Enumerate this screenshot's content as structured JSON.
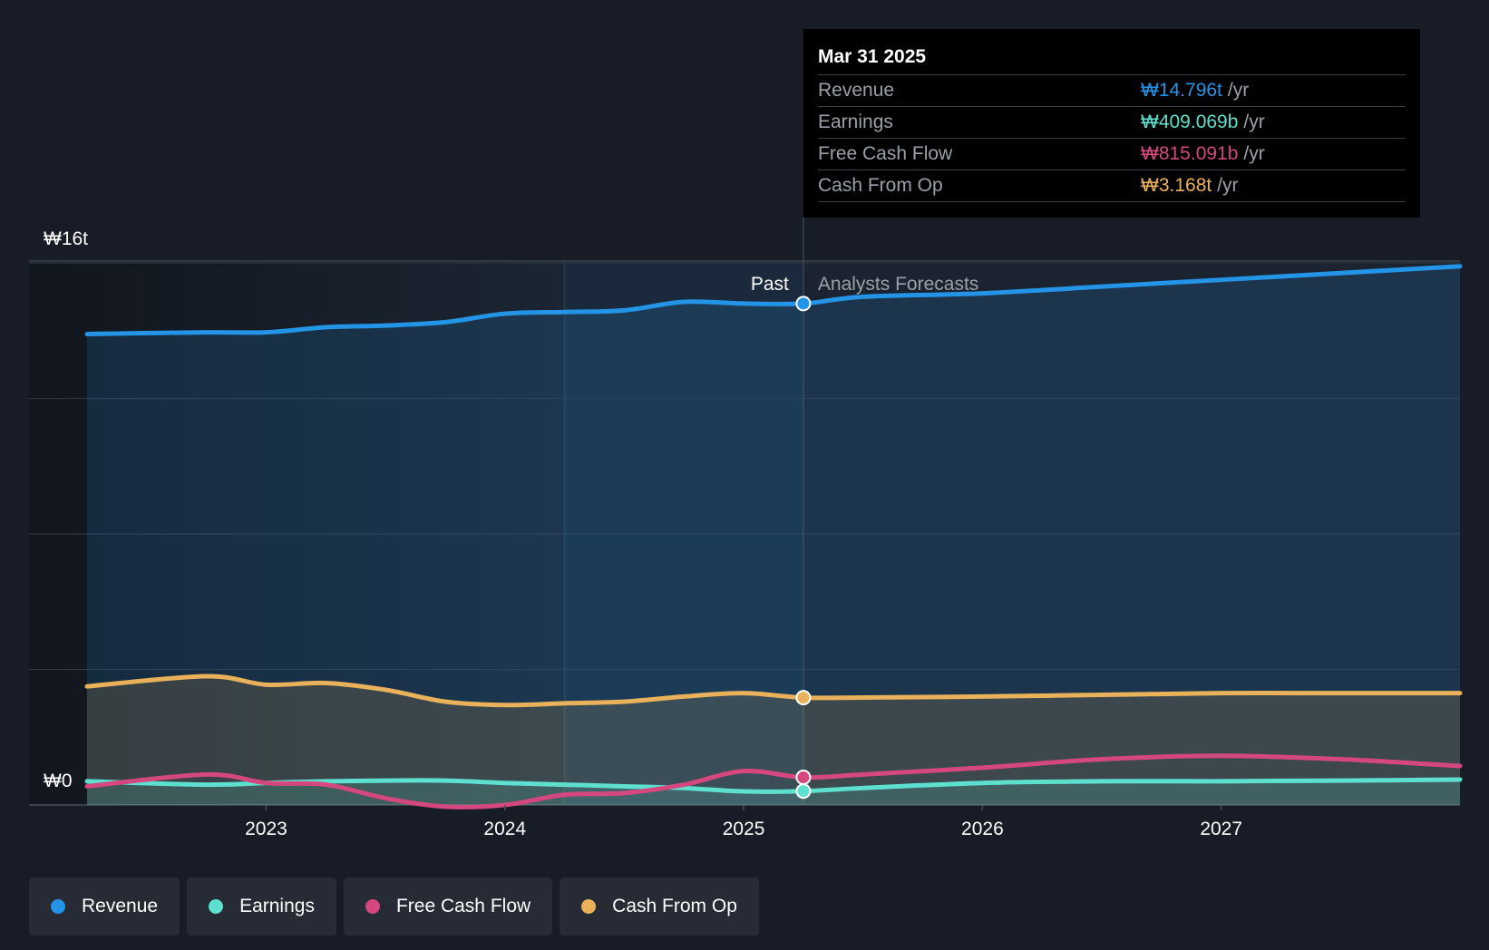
{
  "tooltip": {
    "date": "Mar 31 2025",
    "rows": [
      {
        "label": "Revenue",
        "value": "₩14.796t",
        "unit": "/yr",
        "color": "#2394e6"
      },
      {
        "label": "Earnings",
        "value": "₩409.069b",
        "unit": "/yr",
        "color": "#5ee0cf"
      },
      {
        "label": "Free Cash Flow",
        "value": "₩815.091b",
        "unit": "/yr",
        "color": "#d4477f"
      },
      {
        "label": "Cash From Op",
        "value": "₩3.168t",
        "unit": "/yr",
        "color": "#e9b15a"
      }
    ]
  },
  "legend": [
    {
      "label": "Revenue",
      "color": "#2394e6"
    },
    {
      "label": "Earnings",
      "color": "#5ee0cf"
    },
    {
      "label": "Free Cash Flow",
      "color": "#d4477f"
    },
    {
      "label": "Cash From Op",
      "color": "#e9b15a"
    }
  ],
  "chart_data": {
    "type": "line",
    "y_unit": "₩ trillion",
    "ylim": [
      0,
      16
    ],
    "ytick_labels": [
      {
        "value": 16,
        "label": "₩16t"
      },
      {
        "value": 0,
        "label": "₩0"
      }
    ],
    "xlim": [
      2022.25,
      2028.0
    ],
    "xtick_labels": [
      "2023",
      "2024",
      "2025",
      "2026",
      "2027"
    ],
    "xtick_values": [
      2023,
      2024,
      2025,
      2026,
      2027
    ],
    "past_label": "Past",
    "forecast_label": "Analysts Forecasts",
    "divider_x": 2025.25,
    "highlight_start_x": 2024.25,
    "grid": true,
    "series": [
      {
        "name": "Revenue",
        "color": "#2394e6",
        "fill": true,
        "x": [
          2022.25,
          2022.75,
          2023.0,
          2023.25,
          2023.5,
          2023.75,
          2024.0,
          2024.25,
          2024.5,
          2024.75,
          2025.0,
          2025.25,
          2025.5,
          2026.0,
          2026.5,
          2027.0,
          2027.5,
          2028.0
        ],
        "y": [
          13.9,
          13.95,
          13.95,
          14.1,
          14.15,
          14.25,
          14.5,
          14.55,
          14.6,
          14.85,
          14.8,
          14.8,
          15.0,
          15.1,
          15.3,
          15.5,
          15.7,
          15.9
        ]
      },
      {
        "name": "Cash From Op",
        "color": "#e9b15a",
        "fill": true,
        "x": [
          2022.25,
          2022.75,
          2023.0,
          2023.25,
          2023.5,
          2023.75,
          2024.0,
          2024.25,
          2024.5,
          2024.75,
          2025.0,
          2025.25,
          2025.5,
          2026.0,
          2026.5,
          2027.0,
          2027.5,
          2028.0
        ],
        "y": [
          3.5,
          3.8,
          3.55,
          3.6,
          3.4,
          3.05,
          2.95,
          3.0,
          3.05,
          3.2,
          3.3,
          3.168,
          3.17,
          3.2,
          3.25,
          3.3,
          3.3,
          3.3
        ]
      },
      {
        "name": "Earnings",
        "color": "#5ee0cf",
        "fill": true,
        "x": [
          2022.25,
          2022.75,
          2023.0,
          2023.25,
          2023.5,
          2023.75,
          2024.0,
          2024.25,
          2024.5,
          2024.75,
          2025.0,
          2025.25,
          2025.5,
          2026.0,
          2026.5,
          2027.0,
          2027.5,
          2028.0
        ],
        "y": [
          0.7,
          0.6,
          0.65,
          0.7,
          0.72,
          0.72,
          0.65,
          0.6,
          0.55,
          0.5,
          0.4,
          0.409,
          0.5,
          0.65,
          0.7,
          0.7,
          0.72,
          0.75
        ]
      },
      {
        "name": "Free Cash Flow",
        "color": "#d4477f",
        "fill": false,
        "x": [
          2022.25,
          2022.75,
          2023.0,
          2023.25,
          2023.5,
          2023.75,
          2024.0,
          2024.25,
          2024.5,
          2024.75,
          2025.0,
          2025.25,
          2025.5,
          2026.0,
          2026.5,
          2027.0,
          2027.5,
          2028.0
        ],
        "y": [
          0.55,
          0.9,
          0.65,
          0.6,
          0.2,
          -0.05,
          0.0,
          0.3,
          0.35,
          0.6,
          1.0,
          0.815,
          0.9,
          1.1,
          1.35,
          1.45,
          1.35,
          1.15
        ]
      }
    ],
    "markers_at_x": 2025.25
  }
}
